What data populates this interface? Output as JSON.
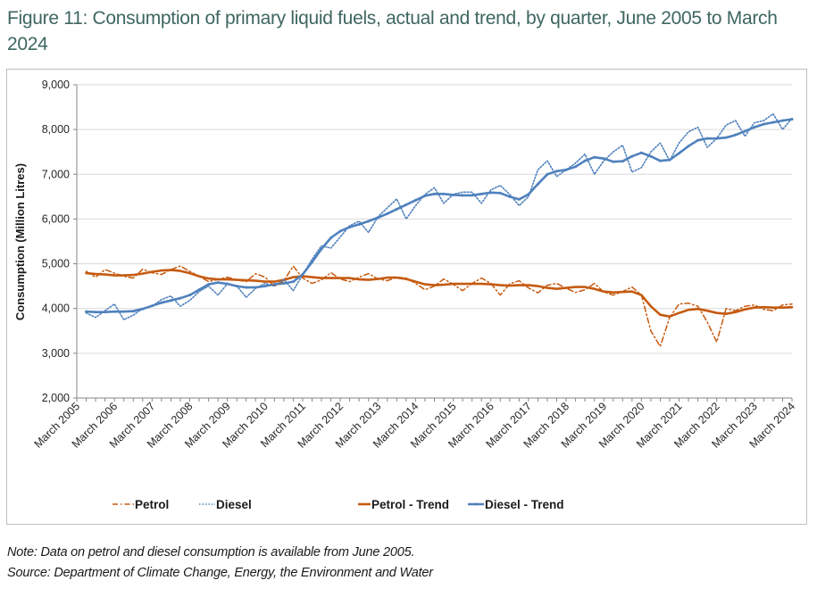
{
  "figure": {
    "title": "Figure 11: Consumption of primary liquid fuels, actual and trend, by quarter, June 2005 to March 2024",
    "note": "Note: Data on petrol and diesel consumption is available from June 2005.",
    "source": "Source: Department of Climate Change, Energy, the Environment and Water"
  },
  "chart_data": {
    "type": "line",
    "title": "Figure 11: Consumption of primary liquid fuels, actual and trend, by quarter, June 2005 to March 2024",
    "xlabel": "",
    "ylabel": "Consumption (Million Litres)",
    "ylim": [
      2000,
      9000
    ],
    "yticks": [
      2000,
      3000,
      4000,
      5000,
      6000,
      7000,
      8000,
      9000
    ],
    "ytick_labels": [
      "2,000",
      "3,000",
      "4,000",
      "5,000",
      "6,000",
      "7,000",
      "8,000",
      "9,000"
    ],
    "x_start": "March 2005",
    "x_frequency": "quarterly",
    "x_tick_labels": [
      "March 2005",
      "March 2006",
      "March 2007",
      "March 2008",
      "March 2009",
      "March 2010",
      "March 2011",
      "March 2012",
      "March 2013",
      "March 2014",
      "March 2015",
      "March 2016",
      "March 2017",
      "March 2018",
      "March 2019",
      "March 2020",
      "March 2021",
      "March 2022",
      "March 2023",
      "March 2024"
    ],
    "grid": true,
    "legend_position": "bottom",
    "data_start_quarter_index": 1,
    "series": [
      {
        "name": "Petrol",
        "color": "#c55a11",
        "style": "dash-dot",
        "values": [
          4830,
          4700,
          4870,
          4790,
          4720,
          4680,
          4880,
          4800,
          4760,
          4870,
          4950,
          4830,
          4720,
          4600,
          4650,
          4700,
          4640,
          4600,
          4780,
          4700,
          4500,
          4620,
          4950,
          4680,
          4560,
          4640,
          4800,
          4660,
          4600,
          4700,
          4780,
          4660,
          4620,
          4700,
          4680,
          4560,
          4420,
          4500,
          4660,
          4540,
          4400,
          4560,
          4680,
          4560,
          4300,
          4550,
          4620,
          4460,
          4350,
          4520,
          4560,
          4450,
          4360,
          4420,
          4560,
          4370,
          4300,
          4380,
          4480,
          4300,
          3500,
          3150,
          3800,
          4100,
          4120,
          4050,
          3700,
          3250,
          4000,
          3950,
          4050,
          4080,
          3980,
          3950,
          4080,
          4100
        ]
      },
      {
        "name": "Diesel",
        "color": "#4f81bd",
        "style": "dotted",
        "values": [
          3900,
          3800,
          3950,
          4100,
          3750,
          3850,
          4000,
          4050,
          4200,
          4280,
          4050,
          4180,
          4380,
          4500,
          4300,
          4550,
          4500,
          4250,
          4450,
          4560,
          4500,
          4650,
          4400,
          4750,
          5100,
          5400,
          5350,
          5600,
          5850,
          5950,
          5700,
          6050,
          6250,
          6450,
          6000,
          6300,
          6550,
          6700,
          6350,
          6550,
          6600,
          6600,
          6350,
          6650,
          6750,
          6550,
          6300,
          6500,
          7100,
          7300,
          6950,
          7100,
          7250,
          7450,
          7000,
          7300,
          7500,
          7650,
          7050,
          7150,
          7500,
          7700,
          7300,
          7700,
          7950,
          8050,
          7600,
          7800,
          8100,
          8200,
          7850,
          8150,
          8200,
          8350,
          8000,
          8250
        ]
      },
      {
        "name": "Petrol - Trend",
        "color": "#c55a11",
        "style": "solid",
        "values": [
          4790,
          4770,
          4760,
          4740,
          4740,
          4750,
          4780,
          4820,
          4850,
          4860,
          4840,
          4790,
          4720,
          4670,
          4650,
          4650,
          4640,
          4630,
          4620,
          4600,
          4600,
          4640,
          4700,
          4720,
          4700,
          4680,
          4680,
          4680,
          4680,
          4650,
          4640,
          4660,
          4690,
          4690,
          4660,
          4600,
          4540,
          4520,
          4530,
          4550,
          4550,
          4550,
          4550,
          4540,
          4520,
          4510,
          4520,
          4520,
          4500,
          4460,
          4440,
          4460,
          4480,
          4480,
          4440,
          4380,
          4360,
          4370,
          4380,
          4300,
          4050,
          3860,
          3820,
          3900,
          3970,
          3990,
          3950,
          3900,
          3880,
          3920,
          3980,
          4020,
          4030,
          4020,
          4020,
          4030
        ]
      },
      {
        "name": "Diesel - Trend",
        "color": "#4f81bd",
        "style": "solid-marker",
        "values": [
          3930,
          3920,
          3920,
          3930,
          3930,
          3940,
          3990,
          4060,
          4130,
          4180,
          4230,
          4300,
          4420,
          4540,
          4580,
          4550,
          4500,
          4470,
          4470,
          4500,
          4540,
          4560,
          4600,
          4760,
          5040,
          5330,
          5580,
          5730,
          5820,
          5880,
          5950,
          6030,
          6120,
          6220,
          6320,
          6420,
          6520,
          6560,
          6560,
          6540,
          6530,
          6530,
          6560,
          6590,
          6580,
          6500,
          6440,
          6550,
          6780,
          7000,
          7070,
          7100,
          7170,
          7300,
          7380,
          7350,
          7280,
          7290,
          7400,
          7480,
          7400,
          7300,
          7320,
          7470,
          7630,
          7760,
          7800,
          7800,
          7820,
          7880,
          7960,
          8050,
          8120,
          8160,
          8200,
          8230
        ]
      }
    ]
  },
  "legend": {
    "items": [
      {
        "label": "Petrol"
      },
      {
        "label": "Diesel"
      },
      {
        "label": "Petrol - Trend"
      },
      {
        "label": "Diesel - Trend"
      }
    ]
  }
}
